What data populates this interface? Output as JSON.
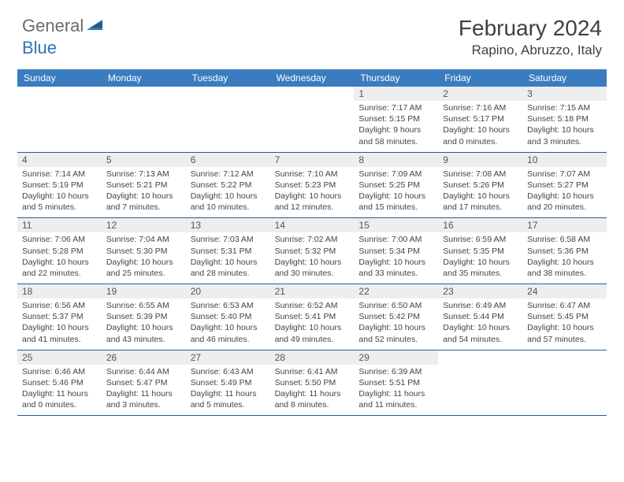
{
  "logo": {
    "text1": "General",
    "text2": "Blue"
  },
  "title": "February 2024",
  "location": "Rapino, Abruzzo, Italy",
  "colors": {
    "header_bg": "#3a7cbf",
    "header_text": "#ffffff",
    "daynum_bg": "#eceeef",
    "border": "#2e5c8a",
    "logo_gray": "#6b6b6b",
    "logo_blue": "#2e75b6"
  },
  "days_of_week": [
    "Sunday",
    "Monday",
    "Tuesday",
    "Wednesday",
    "Thursday",
    "Friday",
    "Saturday"
  ],
  "weeks": [
    [
      null,
      null,
      null,
      null,
      {
        "n": "1",
        "sr": "7:17 AM",
        "ss": "5:15 PM",
        "dl": "9 hours and 58 minutes."
      },
      {
        "n": "2",
        "sr": "7:16 AM",
        "ss": "5:17 PM",
        "dl": "10 hours and 0 minutes."
      },
      {
        "n": "3",
        "sr": "7:15 AM",
        "ss": "5:18 PM",
        "dl": "10 hours and 3 minutes."
      }
    ],
    [
      {
        "n": "4",
        "sr": "7:14 AM",
        "ss": "5:19 PM",
        "dl": "10 hours and 5 minutes."
      },
      {
        "n": "5",
        "sr": "7:13 AM",
        "ss": "5:21 PM",
        "dl": "10 hours and 7 minutes."
      },
      {
        "n": "6",
        "sr": "7:12 AM",
        "ss": "5:22 PM",
        "dl": "10 hours and 10 minutes."
      },
      {
        "n": "7",
        "sr": "7:10 AM",
        "ss": "5:23 PM",
        "dl": "10 hours and 12 minutes."
      },
      {
        "n": "8",
        "sr": "7:09 AM",
        "ss": "5:25 PM",
        "dl": "10 hours and 15 minutes."
      },
      {
        "n": "9",
        "sr": "7:08 AM",
        "ss": "5:26 PM",
        "dl": "10 hours and 17 minutes."
      },
      {
        "n": "10",
        "sr": "7:07 AM",
        "ss": "5:27 PM",
        "dl": "10 hours and 20 minutes."
      }
    ],
    [
      {
        "n": "11",
        "sr": "7:06 AM",
        "ss": "5:28 PM",
        "dl": "10 hours and 22 minutes."
      },
      {
        "n": "12",
        "sr": "7:04 AM",
        "ss": "5:30 PM",
        "dl": "10 hours and 25 minutes."
      },
      {
        "n": "13",
        "sr": "7:03 AM",
        "ss": "5:31 PM",
        "dl": "10 hours and 28 minutes."
      },
      {
        "n": "14",
        "sr": "7:02 AM",
        "ss": "5:32 PM",
        "dl": "10 hours and 30 minutes."
      },
      {
        "n": "15",
        "sr": "7:00 AM",
        "ss": "5:34 PM",
        "dl": "10 hours and 33 minutes."
      },
      {
        "n": "16",
        "sr": "6:59 AM",
        "ss": "5:35 PM",
        "dl": "10 hours and 35 minutes."
      },
      {
        "n": "17",
        "sr": "6:58 AM",
        "ss": "5:36 PM",
        "dl": "10 hours and 38 minutes."
      }
    ],
    [
      {
        "n": "18",
        "sr": "6:56 AM",
        "ss": "5:37 PM",
        "dl": "10 hours and 41 minutes."
      },
      {
        "n": "19",
        "sr": "6:55 AM",
        "ss": "5:39 PM",
        "dl": "10 hours and 43 minutes."
      },
      {
        "n": "20",
        "sr": "6:53 AM",
        "ss": "5:40 PM",
        "dl": "10 hours and 46 minutes."
      },
      {
        "n": "21",
        "sr": "6:52 AM",
        "ss": "5:41 PM",
        "dl": "10 hours and 49 minutes."
      },
      {
        "n": "22",
        "sr": "6:50 AM",
        "ss": "5:42 PM",
        "dl": "10 hours and 52 minutes."
      },
      {
        "n": "23",
        "sr": "6:49 AM",
        "ss": "5:44 PM",
        "dl": "10 hours and 54 minutes."
      },
      {
        "n": "24",
        "sr": "6:47 AM",
        "ss": "5:45 PM",
        "dl": "10 hours and 57 minutes."
      }
    ],
    [
      {
        "n": "25",
        "sr": "6:46 AM",
        "ss": "5:46 PM",
        "dl": "11 hours and 0 minutes."
      },
      {
        "n": "26",
        "sr": "6:44 AM",
        "ss": "5:47 PM",
        "dl": "11 hours and 3 minutes."
      },
      {
        "n": "27",
        "sr": "6:43 AM",
        "ss": "5:49 PM",
        "dl": "11 hours and 5 minutes."
      },
      {
        "n": "28",
        "sr": "6:41 AM",
        "ss": "5:50 PM",
        "dl": "11 hours and 8 minutes."
      },
      {
        "n": "29",
        "sr": "6:39 AM",
        "ss": "5:51 PM",
        "dl": "11 hours and 11 minutes."
      },
      null,
      null
    ]
  ],
  "labels": {
    "sunrise": "Sunrise: ",
    "sunset": "Sunset: ",
    "daylight": "Daylight: "
  }
}
